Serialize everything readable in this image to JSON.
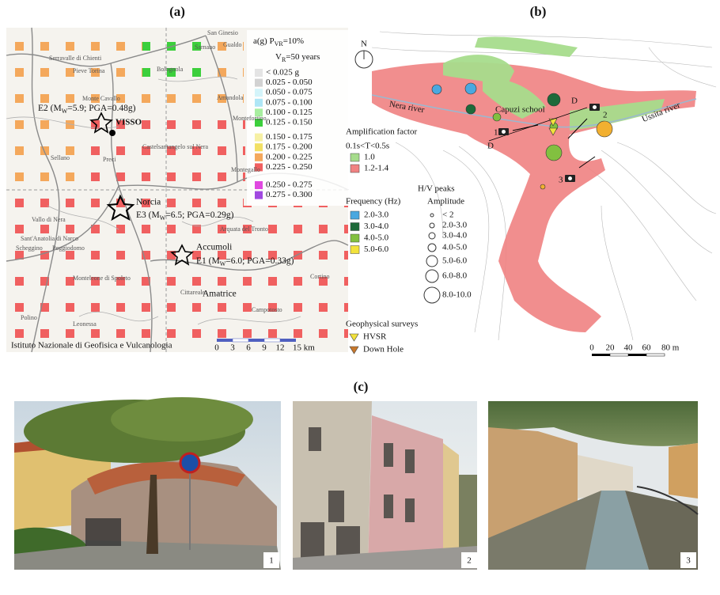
{
  "panel_a": {
    "label": "(a)",
    "legend_title_1": [
      "a(g) P",
      "VR",
      "=10%"
    ],
    "legend_title_2": [
      "V",
      "R",
      "=50 years"
    ],
    "legend": [
      {
        "label": "< 0.025 g",
        "color": "#e4e4e4"
      },
      {
        "label": "0.025 - 0.050",
        "color": "#d2d2d2"
      },
      {
        "label": "0.050 - 0.075",
        "color": "#d4f4fa"
      },
      {
        "label": "0.075 - 0.100",
        "color": "#aee6f6"
      },
      {
        "label": "0.100 - 0.125",
        "color": "#a8eea0"
      },
      {
        "label": "0.125 - 0.150",
        "color": "#3ccf3c"
      },
      {
        "label": "0.150 - 0.175",
        "color": "#f6f0a4"
      },
      {
        "label": "0.175 - 0.200",
        "color": "#f2e064"
      },
      {
        "label": "0.200 - 0.225",
        "color": "#f4a85c"
      },
      {
        "label": "0.225 - 0.250",
        "color": "#f06060"
      },
      {
        "label": "0.250 - 0.275",
        "color": "#e048e0"
      },
      {
        "label": "0.275 - 0.300",
        "color": "#a048e0"
      }
    ],
    "event_e2": [
      "E2 (M",
      "W",
      "=5.9; PGA=0.48g)"
    ],
    "event_e3": [
      "E3 (M",
      "W",
      "=6.5; PGA=0.29g)"
    ],
    "event_e1": [
      "E1 (M",
      "W",
      "=6.0; PGA=0.33g)"
    ],
    "towns": {
      "visso": "VISSO",
      "norcia": "Norcia",
      "accumoli": "Accumoli",
      "amatrice": "Amatrice"
    },
    "places": [
      "San Ginesio",
      "Serravalle di Chienti",
      "Pieve Torina",
      "Monte Cavallo",
      "Bolognola",
      "Sarnano",
      "Gualdo",
      "Amandola",
      "Montefortino",
      "Castelsantangelo sul Nera",
      "Sellano",
      "Preci",
      "Montegallo",
      "Vallo di Nera",
      "Sant'Anatolia di Narco",
      "Scheggino",
      "Poggiodomo",
      "Arquata del Tronto",
      "Monteleone di Spoleto",
      "Cittareale",
      "Polino",
      "Leonessa",
      "Campotosto",
      "Cortino"
    ],
    "credit": "Istituto Nazionale di Geofisica e Vulcanologia",
    "scale": [
      "0",
      "3",
      "6",
      "9",
      "12",
      "15 km"
    ]
  },
  "panel_b": {
    "label": "(b)",
    "north": "N",
    "rivers": [
      "Nera river",
      "Ussita river"
    ],
    "school": "Capuzi school",
    "section": [
      "D",
      "D"
    ],
    "cameras": [
      "1",
      "2",
      "3"
    ],
    "amplification": {
      "title": "Amplification factor",
      "period": "0.1s<T<0.5s",
      "items": [
        {
          "label": "1.0",
          "color": "#a6dc8c"
        },
        {
          "label": "1.2-1.4",
          "color": "#f08282"
        }
      ]
    },
    "hv_title": "H/V peaks",
    "frequency": {
      "title": "Frequency (Hz)",
      "items": [
        {
          "label": "2.0-3.0",
          "color": "#4aa8e0"
        },
        {
          "label": "3.0-4.0",
          "color": "#1e6a3a"
        },
        {
          "label": "4.0-5.0",
          "color": "#82c040"
        },
        {
          "label": "5.0-6.0",
          "color": "#f2e23c"
        }
      ]
    },
    "amplitude": {
      "title": "Amplitude",
      "items": [
        "< 2",
        "2.0-3.0",
        "3.0-4.0",
        "4.0-5.0",
        "5.0-6.0",
        "6.0-8.0",
        "8.0-10.0"
      ]
    },
    "surveys": {
      "title": "Geophysical surveys",
      "items": [
        {
          "label": "HVSR",
          "color": "#f2e23c"
        },
        {
          "label": "Down Hole",
          "color": "#c8782c"
        }
      ]
    },
    "scale": [
      "0",
      "20",
      "40",
      "60",
      "80 m"
    ]
  },
  "panel_c": {
    "label": "(c)",
    "photos": [
      "1",
      "2",
      "3"
    ]
  }
}
